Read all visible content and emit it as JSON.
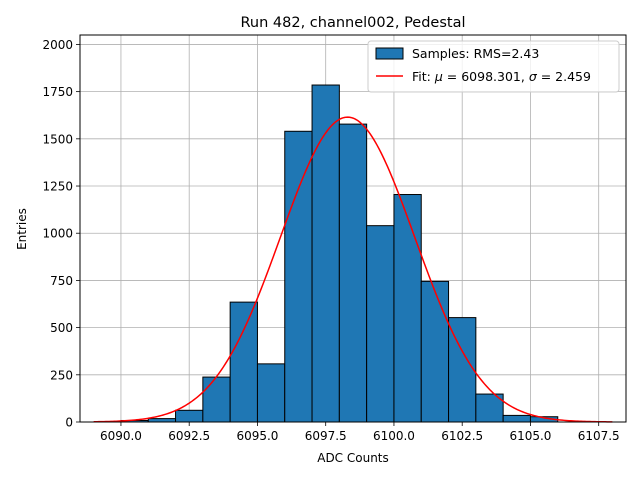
{
  "chart_data": {
    "type": "bar",
    "title": "Run 482, channel002, Pedestal",
    "xlabel": "ADC Counts",
    "ylabel": "Entries",
    "xlim": [
      6088.5,
      6108.5
    ],
    "ylim": [
      0,
      2050
    ],
    "xticks": [
      6090.0,
      6092.5,
      6095.0,
      6097.5,
      6100.0,
      6102.5,
      6105.0,
      6107.5
    ],
    "xtick_labels": [
      "6090.0",
      "6092.5",
      "6095.0",
      "6097.5",
      "6100.0",
      "6102.5",
      "6105.0",
      "6107.5"
    ],
    "yticks": [
      0,
      250,
      500,
      750,
      1000,
      1250,
      1500,
      1750,
      2000
    ],
    "ytick_labels": [
      "0",
      "250",
      "500",
      "750",
      "1000",
      "1250",
      "1500",
      "1750",
      "2000"
    ],
    "grid": true,
    "legend_placement": "top-right",
    "histogram": {
      "name": "Samples: RMS=2.43",
      "bin_edges": [
        6091,
        6092,
        6093,
        6094,
        6095,
        6096,
        6097,
        6098,
        6099,
        6100,
        6101,
        6102,
        6103,
        6104,
        6105,
        6106
      ],
      "counts": [
        8,
        18,
        62,
        238,
        635,
        308,
        1540,
        1785,
        1578,
        1040,
        1205,
        745,
        553,
        148,
        35,
        28
      ],
      "bin_starts": [
        6090,
        6091,
        6092,
        6093,
        6094,
        6095,
        6096,
        6097,
        6098,
        6099,
        6100,
        6101,
        6102,
        6103,
        6104,
        6105
      ],
      "color": "#1f77b4",
      "edgecolor": "#000000"
    },
    "fit": {
      "name_prefix": "Fit: ",
      "mu_symbol": "μ",
      "mu_text": " = 6098.301, ",
      "sigma_symbol": "σ",
      "sigma_text": " = 2.459",
      "mu": 6098.301,
      "sigma": 2.459,
      "amplitude": 1615,
      "x_range": [
        6089,
        6108
      ],
      "color": "#ff0000"
    }
  }
}
